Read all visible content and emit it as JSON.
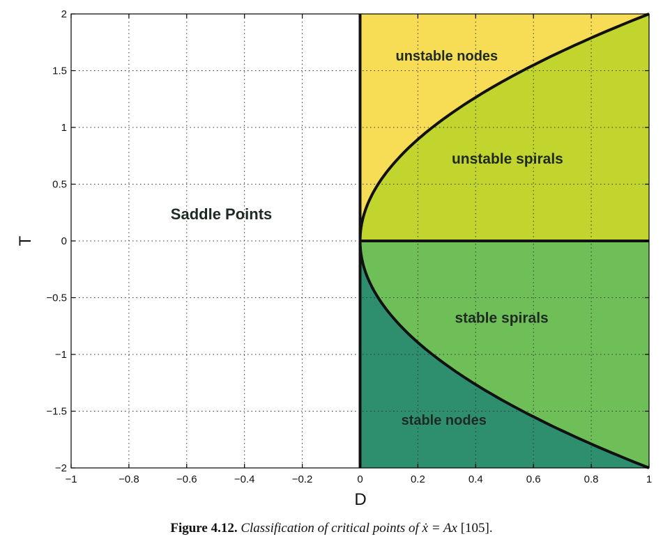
{
  "chart_data": {
    "type": "area",
    "xlabel": "D",
    "ylabel": "T",
    "xlim": [
      -1,
      1
    ],
    "ylim": [
      -2,
      2
    ],
    "grid": true,
    "x_ticks": [
      "−1",
      "−0.8",
      "−0.6",
      "−0.4",
      "−0.2",
      "0",
      "0.2",
      "0.4",
      "0.6",
      "0.8",
      "1"
    ],
    "x_tick_values": [
      -1,
      -0.8,
      -0.6,
      -0.4,
      -0.2,
      0,
      0.2,
      0.4,
      0.6,
      0.8,
      1
    ],
    "y_ticks": [
      "2",
      "1.5",
      "1",
      "0.5",
      "0",
      "−0.5",
      "−1",
      "−1.5",
      "−2"
    ],
    "y_tick_values": [
      2,
      1.5,
      1,
      0.5,
      0,
      -0.5,
      -1,
      -1.5,
      -2
    ],
    "boundary_curve": {
      "equation": "T^2 = 4D",
      "D": [
        0,
        0.0625,
        0.25,
        0.5625,
        1
      ],
      "T_upper": [
        0,
        0.5,
        1,
        1.5,
        2
      ],
      "T_lower": [
        0,
        -0.5,
        -1,
        -1.5,
        -2
      ]
    },
    "regions": [
      {
        "label": "Saddle Points",
        "color": "#ffffff",
        "label_at": [
          -0.48,
          0.19
        ]
      },
      {
        "label": "unstable nodes",
        "color": "#f7dc55",
        "label_at": [
          0.3,
          1.59
        ]
      },
      {
        "label": "unstable spirals",
        "color": "#c2d42e",
        "label_at": [
          0.51,
          0.68
        ]
      },
      {
        "label": "stable spirals",
        "color": "#6fbf58",
        "label_at": [
          0.49,
          -0.72
        ]
      },
      {
        "label": "stable nodes",
        "color": "#2e8f6e",
        "label_at": [
          0.29,
          -1.62
        ]
      }
    ]
  },
  "caption": {
    "figure_number": "Figure 4.12.",
    "text": "Classification of critical points of ẋ = Ax",
    "reference": "[105]."
  }
}
